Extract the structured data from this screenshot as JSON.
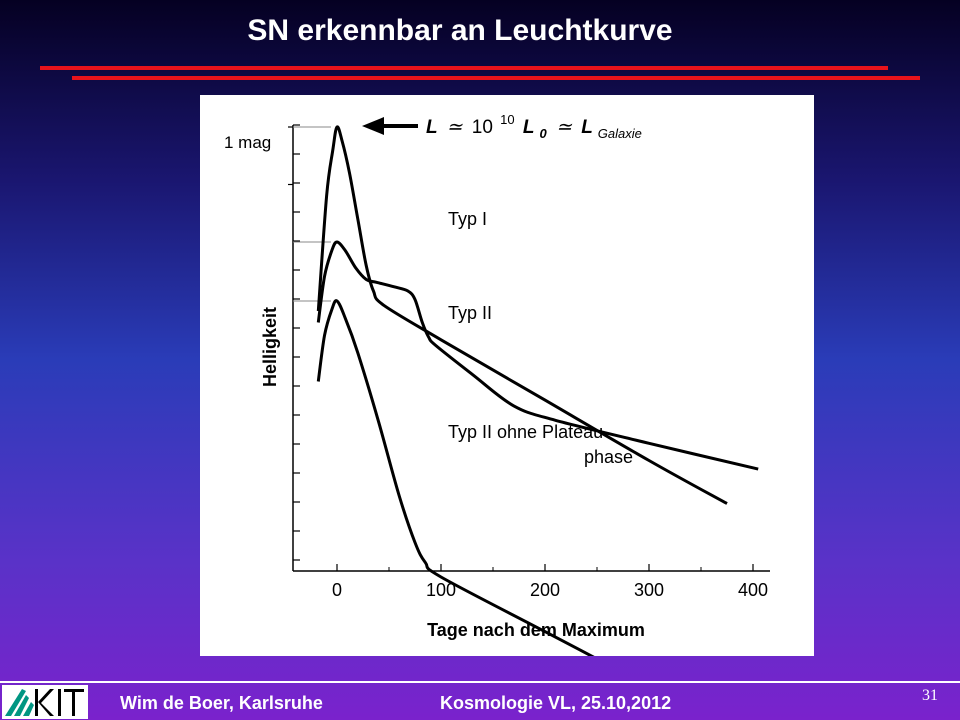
{
  "slide": {
    "title": "SN erkennbar an Leuchtkurve",
    "page_number": "31"
  },
  "footer": {
    "author": "Wim de Boer, Karlsruhe",
    "course": "Kosmologie VL,  25.10,2012",
    "logo_text": "KIT"
  },
  "chart_data": {
    "type": "line",
    "xlabel": "Tage nach dem Maximum",
    "ylabel": "Helligkeit",
    "x_ticks": [
      "0",
      "100",
      "200",
      "300",
      "400"
    ],
    "xlim": [
      -20,
      410
    ],
    "scale_annotation": "1 mag",
    "peak_annotation": {
      "L": "L",
      "approx1": "≃",
      "base": "10",
      "exp": "10",
      "L0": "L",
      "L0_sub": "0",
      "approx2": "≃",
      "Lgal": "L",
      "Lgal_sub": "Galaxie"
    },
    "series": [
      {
        "name": "Typ I",
        "points": [
          [
            -18,
            -3.2
          ],
          [
            -10,
            -1.2
          ],
          [
            -4,
            -0.4
          ],
          [
            0,
            0
          ],
          [
            5,
            -0.25
          ],
          [
            12,
            -0.8
          ],
          [
            20,
            -1.6
          ],
          [
            28,
            -2.4
          ],
          [
            35,
            -2.85
          ],
          [
            45,
            -3.1
          ],
          [
            100,
            -3.7
          ],
          [
            200,
            -4.75
          ],
          [
            300,
            -5.8
          ],
          [
            375,
            -6.55
          ]
        ]
      },
      {
        "name": "Typ II",
        "points": [
          [
            -18,
            -1.4
          ],
          [
            -12,
            -0.6
          ],
          [
            -5,
            -0.15
          ],
          [
            0,
            0
          ],
          [
            8,
            -0.15
          ],
          [
            18,
            -0.45
          ],
          [
            28,
            -0.65
          ],
          [
            38,
            -0.7
          ],
          [
            55,
            -0.78
          ],
          [
            68,
            -0.85
          ],
          [
            75,
            -1.0
          ],
          [
            82,
            -1.4
          ],
          [
            88,
            -1.65
          ],
          [
            95,
            -1.8
          ],
          [
            130,
            -2.3
          ],
          [
            170,
            -2.85
          ],
          [
            210,
            -3.1
          ],
          [
            300,
            -3.5
          ],
          [
            405,
            -3.95
          ]
        ]
      },
      {
        "name": "Typ II ohne Plateau-phase",
        "points": [
          [
            -18,
            -1.4
          ],
          [
            -12,
            -0.6
          ],
          [
            -5,
            -0.15
          ],
          [
            0,
            0
          ],
          [
            8,
            -0.3
          ],
          [
            20,
            -0.9
          ],
          [
            40,
            -2.1
          ],
          [
            60,
            -3.4
          ],
          [
            75,
            -4.2
          ],
          [
            85,
            -4.55
          ],
          [
            100,
            -4.8
          ],
          [
            200,
            -5.75
          ],
          [
            300,
            -6.7
          ],
          [
            405,
            -7.7
          ]
        ]
      }
    ],
    "labels": {
      "typ1": "Typ I",
      "typ2": "Typ II",
      "typ3_line1": "Typ II ohne Plateau-",
      "typ3_line2": "phase"
    }
  }
}
